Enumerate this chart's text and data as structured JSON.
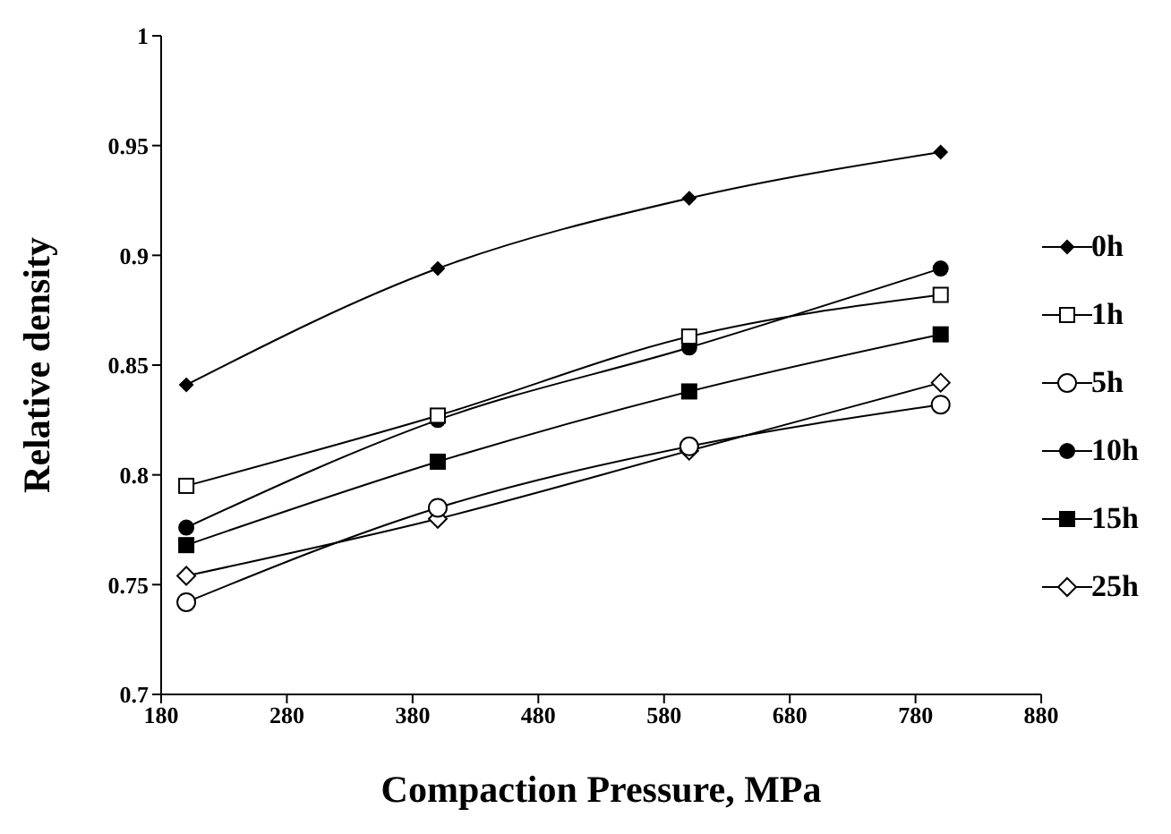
{
  "chart_data": {
    "type": "line",
    "xlabel": "Compaction Pressure, MPa",
    "ylabel": "Relative density",
    "x": [
      200,
      400,
      600,
      800
    ],
    "series": [
      {
        "name": "0h",
        "color": "#000000",
        "marker": "diamond",
        "values": [
          0.841,
          0.894,
          0.926,
          0.947
        ]
      },
      {
        "name": "1h",
        "color": "#000000",
        "marker": "square-open",
        "values": [
          0.795,
          0.827,
          0.863,
          0.882
        ]
      },
      {
        "name": "5h",
        "color": "#000000",
        "marker": "circle-open",
        "values": [
          0.742,
          0.785,
          0.813,
          0.832
        ]
      },
      {
        "name": "10h",
        "color": "#000000",
        "marker": "circle",
        "values": [
          0.776,
          0.825,
          0.858,
          0.894
        ]
      },
      {
        "name": "15h",
        "color": "#000000",
        "marker": "square",
        "values": [
          0.768,
          0.806,
          0.838,
          0.864
        ]
      },
      {
        "name": "25h",
        "color": "#000000",
        "marker": "diamond-open",
        "values": [
          0.754,
          0.78,
          0.811,
          0.842
        ]
      }
    ],
    "xlim": [
      180,
      880
    ],
    "xticks": [
      180,
      280,
      380,
      480,
      580,
      680,
      780,
      880
    ],
    "ylim": [
      0.7,
      1
    ],
    "yticks": [
      0.7,
      0.75,
      0.8,
      0.85,
      0.9,
      0.95,
      1
    ],
    "grid": false,
    "legend": "right",
    "line_style": "solid"
  }
}
